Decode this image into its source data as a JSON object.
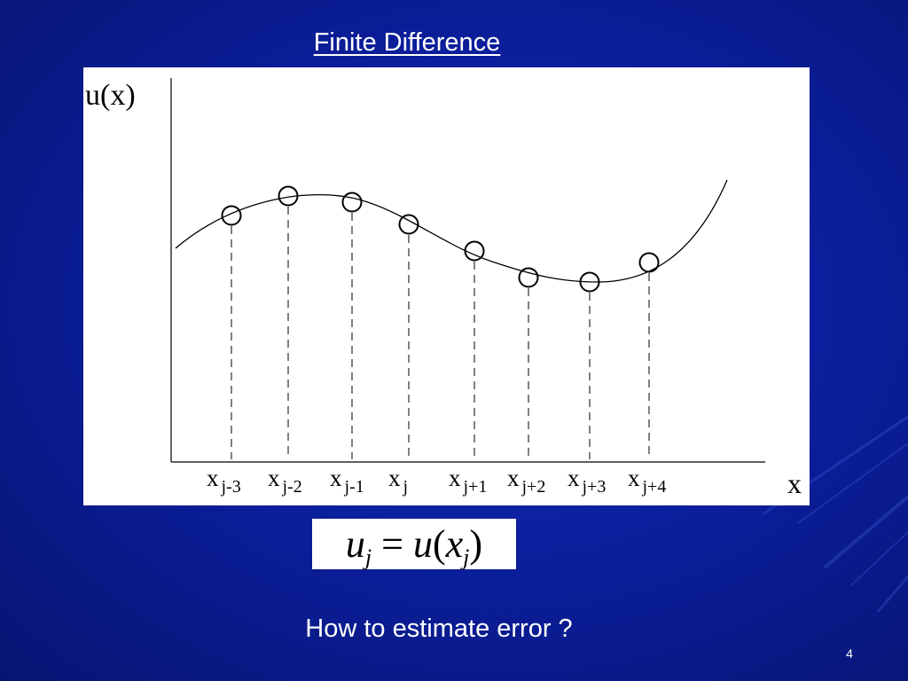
{
  "slide": {
    "title": "Finite Difference",
    "question": "How to estimate error ?",
    "page_number": "4"
  },
  "diagram": {
    "y_axis_label": "u(x)",
    "x_axis_label": "x",
    "grid_labels": [
      {
        "base": "x",
        "sub": "j-3"
      },
      {
        "base": "x",
        "sub": "j-2"
      },
      {
        "base": "x",
        "sub": "j-1"
      },
      {
        "base": "x",
        "sub": "j"
      },
      {
        "base": "x",
        "sub": "j+1"
      },
      {
        "base": "x",
        "sub": "j+2"
      },
      {
        "base": "x",
        "sub": "j+3"
      },
      {
        "base": "x",
        "sub": "j+4"
      }
    ]
  },
  "equation": {
    "lhs": "u",
    "lhs_sub": "j",
    "equals": "=",
    "rhs_func": "u",
    "rhs_open": "(",
    "rhs_arg": "x",
    "rhs_sub": "j",
    "rhs_close": ")"
  },
  "colors": {
    "background": "#0c1f9e",
    "diagram_background": "#ffffff",
    "ink": "#000000",
    "text": "#ffffff"
  }
}
